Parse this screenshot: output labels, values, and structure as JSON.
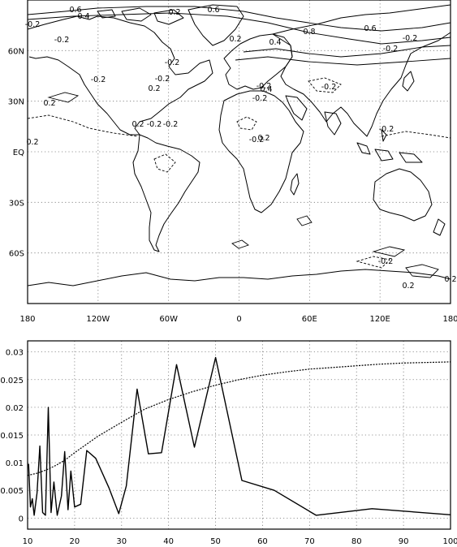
{
  "chart_data": [
    {
      "type": "contour-map",
      "x_tick_labels": [
        "180",
        "120W",
        "60W",
        "0",
        "60E",
        "120E",
        "180"
      ],
      "y_tick_labels": [
        "60N",
        "30N",
        "EQ",
        "30S",
        "60S"
      ],
      "xlim": [
        -180,
        180
      ],
      "ylim": [
        -90,
        90
      ],
      "x_ticks": [
        -180,
        -120,
        -60,
        0,
        60,
        120,
        180
      ],
      "y_ticks": [
        60,
        30,
        0,
        -30,
        -60
      ],
      "grid": true,
      "contour_labels": [
        "0.6",
        "0.4",
        "-0.2",
        "0.2",
        "0.6",
        "0.8",
        "0.4",
        "0.6",
        "-0.2",
        "-0.2",
        "-0.2",
        "0.2",
        "-0.2",
        "-0.2",
        "-0.2",
        "0.2",
        "-0.2",
        "0.2",
        "-0.2",
        "-0.2",
        "0.2",
        "0.4",
        "-0.2",
        "0.2",
        "-0.2",
        "0.2",
        "-0.2",
        "-0.2",
        "0.2",
        "0.2",
        "-0.2"
      ]
    },
    {
      "type": "line",
      "xlim": [
        10,
        100
      ],
      "ylim": [
        -0.002,
        0.032
      ],
      "x_ticks": [
        10,
        20,
        30,
        40,
        50,
        60,
        70,
        80,
        90,
        100
      ],
      "y_ticks": [
        0,
        0.005,
        0.01,
        0.015,
        0.02,
        0.025,
        0.03
      ],
      "x_tick_labels": [
        "10",
        "20",
        "30",
        "40",
        "50",
        "60",
        "70",
        "80",
        "90",
        "100"
      ],
      "y_tick_labels": [
        "0",
        "0.005",
        "0.01",
        "0.015",
        "0.02",
        "0.025",
        "0.03"
      ],
      "grid": true,
      "series": [
        {
          "style": "solid",
          "points": [
            [
              10.2,
              0.0098
            ],
            [
              10.6,
              0.002
            ],
            [
              11.0,
              0.0035
            ],
            [
              11.4,
              0.0005
            ],
            [
              12.0,
              0.0045
            ],
            [
              12.6,
              0.013
            ],
            [
              13.2,
              0.001
            ],
            [
              13.8,
              0.0005
            ],
            [
              14.4,
              0.02
            ],
            [
              15.0,
              0.001
            ],
            [
              15.6,
              0.0065
            ],
            [
              16.3,
              0.0005
            ],
            [
              17.2,
              0.004
            ],
            [
              17.9,
              0.012
            ],
            [
              18.6,
              0.0015
            ],
            [
              19.2,
              0.0085
            ],
            [
              20.0,
              0.002
            ],
            [
              21.3,
              0.0025
            ],
            [
              22.6,
              0.0122
            ],
            [
              24.5,
              0.0108
            ],
            [
              27.3,
              0.0055
            ],
            [
              29.4,
              0.0008
            ],
            [
              31.0,
              0.0058
            ],
            [
              33.3,
              0.0233
            ],
            [
              35.7,
              0.0116
            ],
            [
              38.5,
              0.0118
            ],
            [
              41.7,
              0.0277
            ],
            [
              45.5,
              0.0128
            ],
            [
              50.0,
              0.029
            ],
            [
              55.6,
              0.0068
            ],
            [
              62.5,
              0.005
            ],
            [
              71.4,
              0.0005
            ],
            [
              83.3,
              0.0017
            ],
            [
              100.0,
              0.0006
            ]
          ]
        },
        {
          "style": "dashed",
          "points": [
            [
              10,
              0.0077
            ],
            [
              12,
              0.0081
            ],
            [
              14,
              0.0087
            ],
            [
              16,
              0.0095
            ],
            [
              18,
              0.0105
            ],
            [
              20,
              0.0118
            ],
            [
              25,
              0.0148
            ],
            [
              30,
              0.0173
            ],
            [
              35,
              0.0197
            ],
            [
              40,
              0.0214
            ],
            [
              45,
              0.0228
            ],
            [
              50,
              0.024
            ],
            [
              55,
              0.025
            ],
            [
              60,
              0.0258
            ],
            [
              65,
              0.0264
            ],
            [
              70,
              0.0269
            ],
            [
              75,
              0.0272
            ],
            [
              80,
              0.0275
            ],
            [
              85,
              0.0278
            ],
            [
              90,
              0.028
            ],
            [
              95,
              0.0281
            ],
            [
              100,
              0.0282
            ]
          ]
        }
      ]
    }
  ]
}
